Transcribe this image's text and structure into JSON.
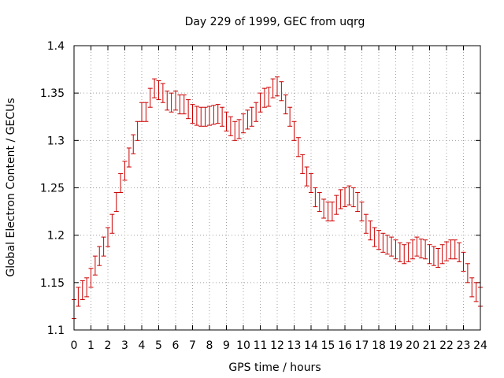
{
  "chart_data": {
    "type": "scatter",
    "title": "Day 229 of 1999, GEC from uqrg",
    "xlabel": "GPS time / hours",
    "ylabel": "Global Electron Content / GECUs",
    "xlim": [
      0,
      24
    ],
    "ylim": [
      1.1,
      1.4
    ],
    "grid": true,
    "x_ticks": [
      "0",
      "1",
      "2",
      "3",
      "4",
      "5",
      "6",
      "7",
      "8",
      "9",
      "10",
      "11",
      "12",
      "13",
      "14",
      "15",
      "16",
      "17",
      "18",
      "19",
      "20",
      "21",
      "22",
      "23",
      "24"
    ],
    "y_ticks": [
      "1.1",
      "1.15",
      "1.2",
      "1.25",
      "1.3",
      "1.35",
      "1.4"
    ],
    "series": [
      {
        "name": "GEC",
        "color": "#cc0000",
        "error": 0.01,
        "x": [
          0.0,
          0.25,
          0.5,
          0.75,
          1.0,
          1.25,
          1.5,
          1.75,
          2.0,
          2.25,
          2.5,
          2.75,
          3.0,
          3.25,
          3.5,
          3.75,
          4.0,
          4.25,
          4.5,
          4.75,
          5.0,
          5.25,
          5.5,
          5.75,
          6.0,
          6.25,
          6.5,
          6.75,
          7.0,
          7.25,
          7.5,
          7.75,
          8.0,
          8.25,
          8.5,
          8.75,
          9.0,
          9.25,
          9.5,
          9.75,
          10.0,
          10.25,
          10.5,
          10.75,
          11.0,
          11.25,
          11.5,
          11.75,
          12.0,
          12.25,
          12.5,
          12.75,
          13.0,
          13.25,
          13.5,
          13.75,
          14.0,
          14.25,
          14.5,
          14.75,
          15.0,
          15.25,
          15.5,
          15.75,
          16.0,
          16.25,
          16.5,
          16.75,
          17.0,
          17.25,
          17.5,
          17.75,
          18.0,
          18.25,
          18.5,
          18.75,
          19.0,
          19.25,
          19.5,
          19.75,
          20.0,
          20.25,
          20.5,
          20.75,
          21.0,
          21.25,
          21.5,
          21.75,
          22.0,
          22.25,
          22.5,
          22.75,
          23.0,
          23.25,
          23.5,
          23.75,
          24.0
        ],
        "y": [
          1.122,
          1.135,
          1.142,
          1.145,
          1.155,
          1.168,
          1.178,
          1.188,
          1.198,
          1.212,
          1.235,
          1.255,
          1.268,
          1.282,
          1.296,
          1.31,
          1.33,
          1.33,
          1.345,
          1.355,
          1.353,
          1.35,
          1.342,
          1.34,
          1.342,
          1.338,
          1.338,
          1.333,
          1.328,
          1.326,
          1.325,
          1.325,
          1.326,
          1.327,
          1.328,
          1.325,
          1.32,
          1.315,
          1.31,
          1.312,
          1.318,
          1.322,
          1.325,
          1.33,
          1.34,
          1.345,
          1.346,
          1.355,
          1.357,
          1.352,
          1.338,
          1.325,
          1.31,
          1.293,
          1.275,
          1.262,
          1.255,
          1.24,
          1.235,
          1.228,
          1.225,
          1.225,
          1.232,
          1.238,
          1.24,
          1.242,
          1.24,
          1.235,
          1.225,
          1.212,
          1.205,
          1.198,
          1.195,
          1.192,
          1.19,
          1.188,
          1.185,
          1.182,
          1.18,
          1.182,
          1.185,
          1.188,
          1.186,
          1.185,
          1.18,
          1.178,
          1.176,
          1.18,
          1.183,
          1.185,
          1.185,
          1.182,
          1.172,
          1.16,
          1.145,
          1.14,
          1.135
        ]
      }
    ]
  }
}
